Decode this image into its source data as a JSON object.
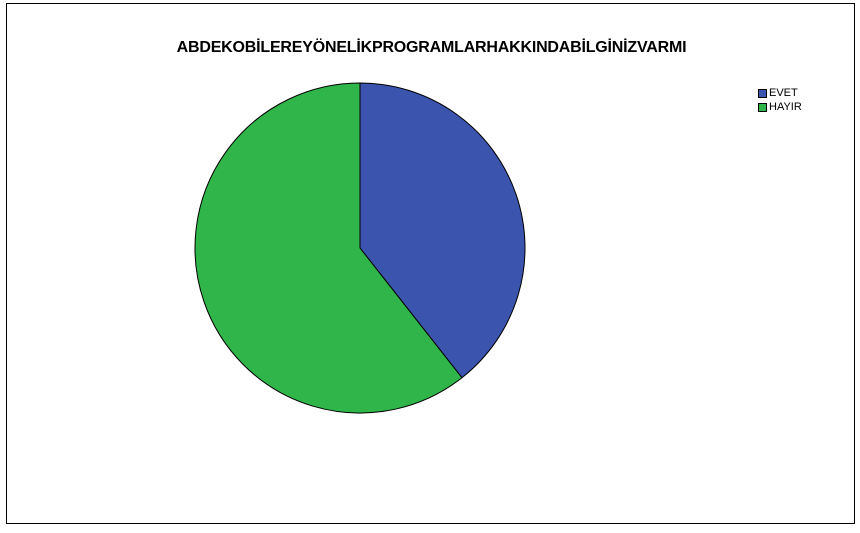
{
  "chart_data": {
    "type": "pie",
    "title": "ABDEKOBİLEREYÖNELİKPROGRAMLARHAKKINDABİLGİNİZVARMI",
    "slices": [
      {
        "label": "EVET",
        "value": 39.4,
        "color": "#3b54ae"
      },
      {
        "label": "HAYIR",
        "value": 60.6,
        "color": "#2fb54a"
      }
    ],
    "legend_position": "top-right"
  }
}
